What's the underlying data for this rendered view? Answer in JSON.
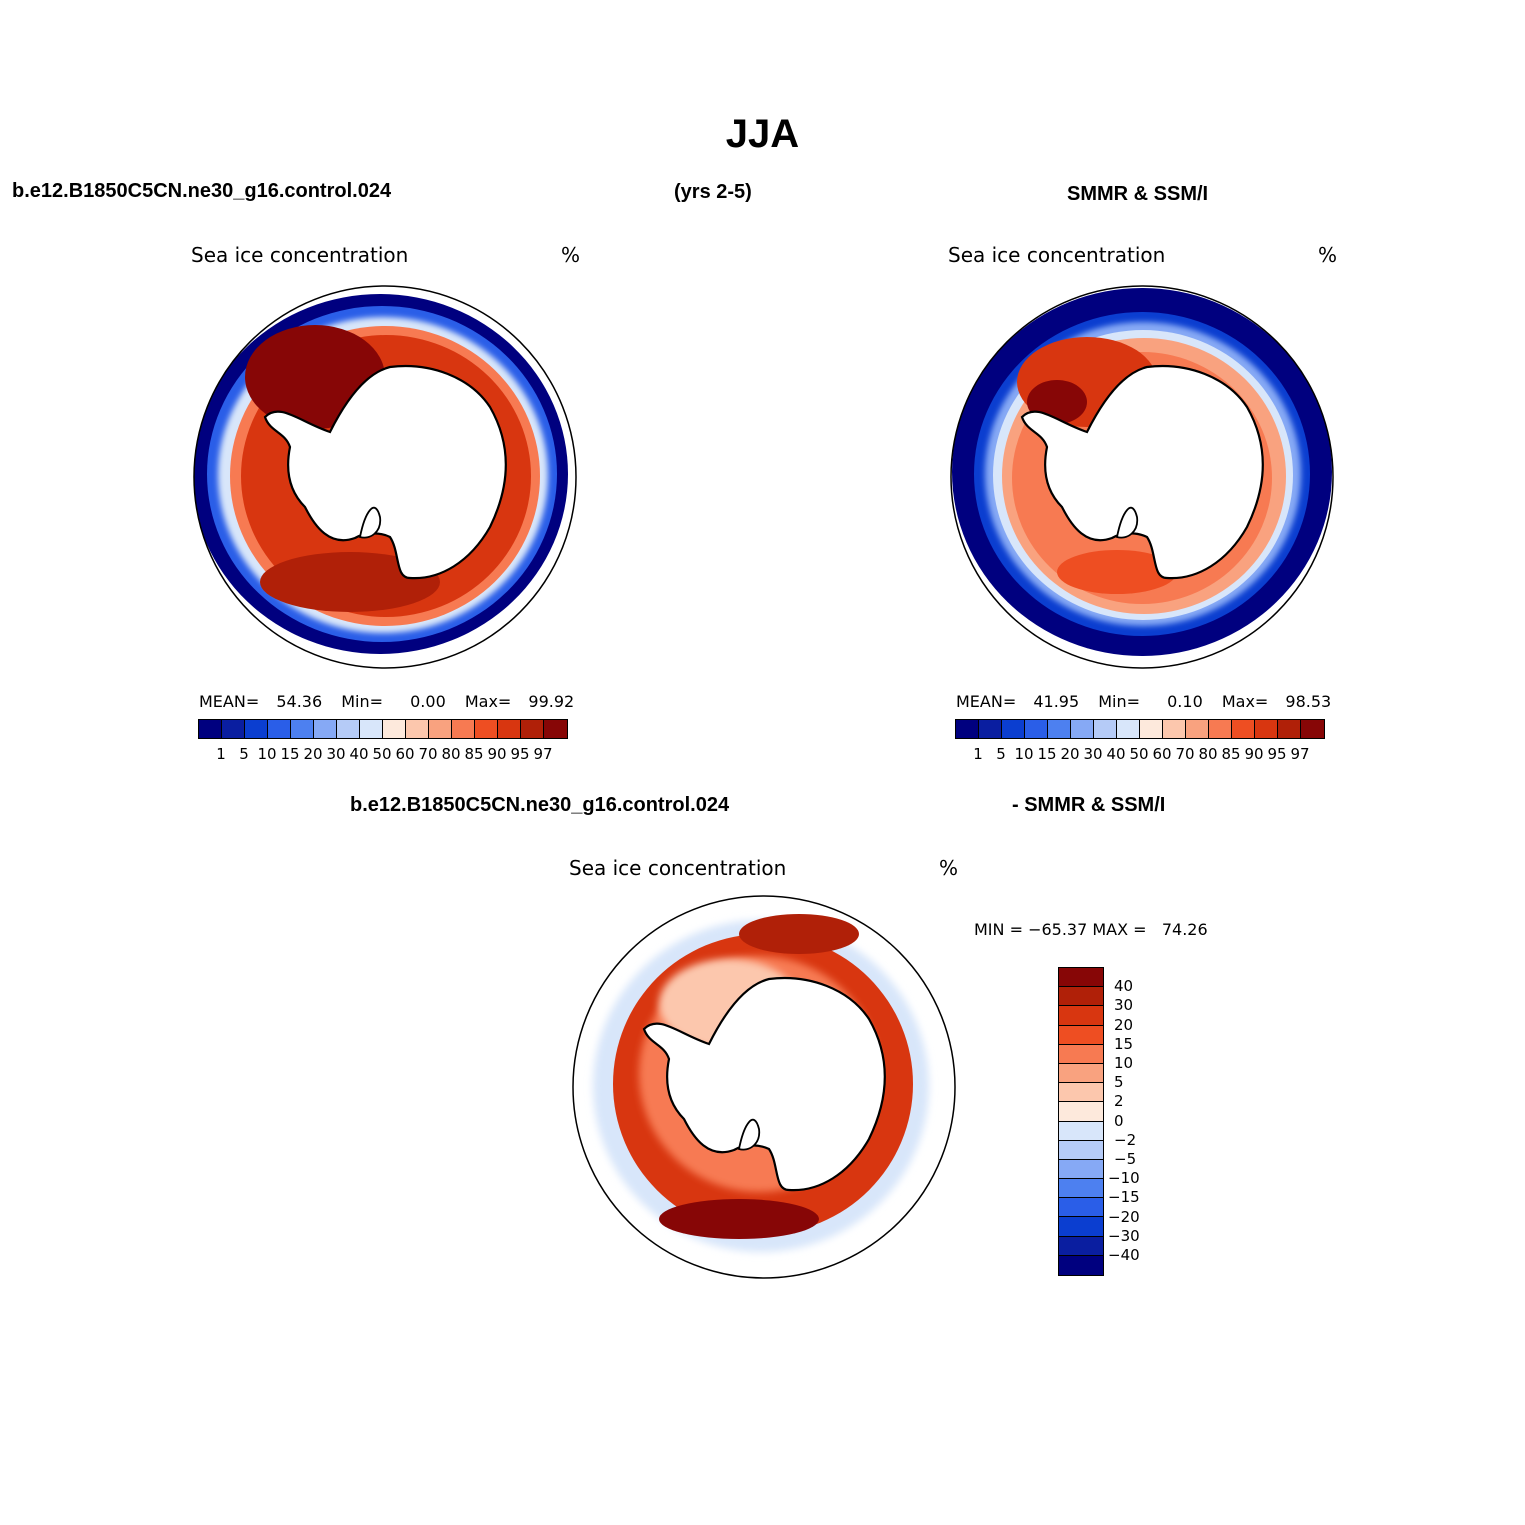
{
  "title": "JJA",
  "header": {
    "case": "b.e12.B1850C5CN.ne30_g16.control.024",
    "years": "(yrs 2-5)",
    "obs": "SMMR & SSM/I",
    "diff_case": "b.e12.B1850C5CN.ne30_g16.control.024",
    "diff_obs": "- SMMR & SSM/I"
  },
  "panels": {
    "left": {
      "variable": "Sea ice concentration",
      "units": "%",
      "mean_label": "MEAN=",
      "mean": "54.36",
      "min_label": "Min=",
      "min": "0.00",
      "max_label": "Max=",
      "max": "99.92"
    },
    "right": {
      "variable": "Sea ice concentration",
      "units": "%",
      "mean_label": "MEAN=",
      "mean": "41.95",
      "min_label": "Min=",
      "min": "0.10",
      "max_label": "Max=",
      "max": "98.53"
    },
    "diff": {
      "variable": "Sea ice concentration",
      "units": "%",
      "minmax_text": "MIN = −65.37 MAX =   74.26"
    }
  },
  "colorbar_abs": {
    "labels": [
      "1",
      "5",
      "10",
      "15",
      "20",
      "30",
      "40",
      "50",
      "60",
      "70",
      "80",
      "85",
      "90",
      "95",
      "97"
    ],
    "colors": [
      "#00007f",
      "#0a1ea0",
      "#0b3ed0",
      "#2a5ee8",
      "#4d80f0",
      "#86a9f5",
      "#b5cbf7",
      "#d8e6fa",
      "#fde9dc",
      "#fcc7ad",
      "#f9a27f",
      "#f77a52",
      "#ee4e22",
      "#d83610",
      "#b02008",
      "#870606"
    ]
  },
  "colorbar_diff": {
    "labels": [
      "40",
      "30",
      "20",
      "15",
      "10",
      "5",
      "2",
      "0",
      "−2",
      "−5",
      "−10",
      "−15",
      "−20",
      "−30",
      "−40"
    ],
    "colors": [
      "#870606",
      "#b02008",
      "#d83610",
      "#ee4e22",
      "#f77a52",
      "#f9a27f",
      "#fcc7ad",
      "#fde9dc",
      "#d8e6fa",
      "#b5cbf7",
      "#86a9f5",
      "#4d80f0",
      "#2a5ee8",
      "#0b3ed0",
      "#0a1ea0",
      "#00007f"
    ]
  }
}
